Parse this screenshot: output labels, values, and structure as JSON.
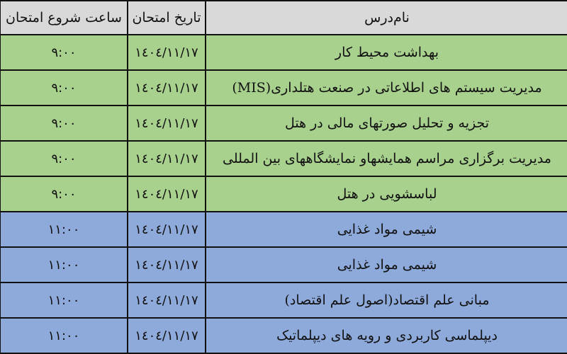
{
  "headers": {
    "course": "نام‌درس",
    "date": "تاریخ امتحان",
    "time": "ساعت شروع امتحان"
  },
  "colors": {
    "header": "#d9d9d9",
    "morning": "#a9d18e",
    "late_morning": "#8eaadb"
  },
  "rows": [
    {
      "course": "بهداشت محیط کار",
      "date": "١٤٠٤/١١/١٧",
      "time": "٩:٠٠",
      "group": "green"
    },
    {
      "course": "مدیریت سیستم های اطلاعاتی در صنعت هتلداری(MIS)",
      "date": "١٤٠٤/١١/١٧",
      "time": "٩:٠٠",
      "group": "green"
    },
    {
      "course": "تجزیه و تحلیل صورتهای مالی در هتل",
      "date": "١٤٠٤/١١/١٧",
      "time": "٩:٠٠",
      "group": "green"
    },
    {
      "course": "مدیریت برگزاری مراسم همایشهاو نمایشگاههای بین المللی",
      "date": "١٤٠٤/١١/١٧",
      "time": "٩:٠٠",
      "group": "green"
    },
    {
      "course": "لباسشویی در هتل",
      "date": "١٤٠٤/١١/١٧",
      "time": "٩:٠٠",
      "group": "green"
    },
    {
      "course": "شیمی مواد غذایی",
      "date": "١٤٠٤/١١/١٧",
      "time": "١١:٠٠",
      "group": "blue"
    },
    {
      "course": "شیمی مواد غذایی",
      "date": "١٤٠٤/١١/١٧",
      "time": "١١:٠٠",
      "group": "blue"
    },
    {
      "course": "مبانی علم اقتصاد(اصول علم اقتصاد)",
      "date": "١٤٠٤/١١/١٧",
      "time": "١١:٠٠",
      "group": "blue"
    },
    {
      "course": "دیپلماسی کاربردی و رویه های دیپلماتیک",
      "date": "١٤٠٤/١١/١٧",
      "time": "١١:٠٠",
      "group": "blue"
    }
  ]
}
